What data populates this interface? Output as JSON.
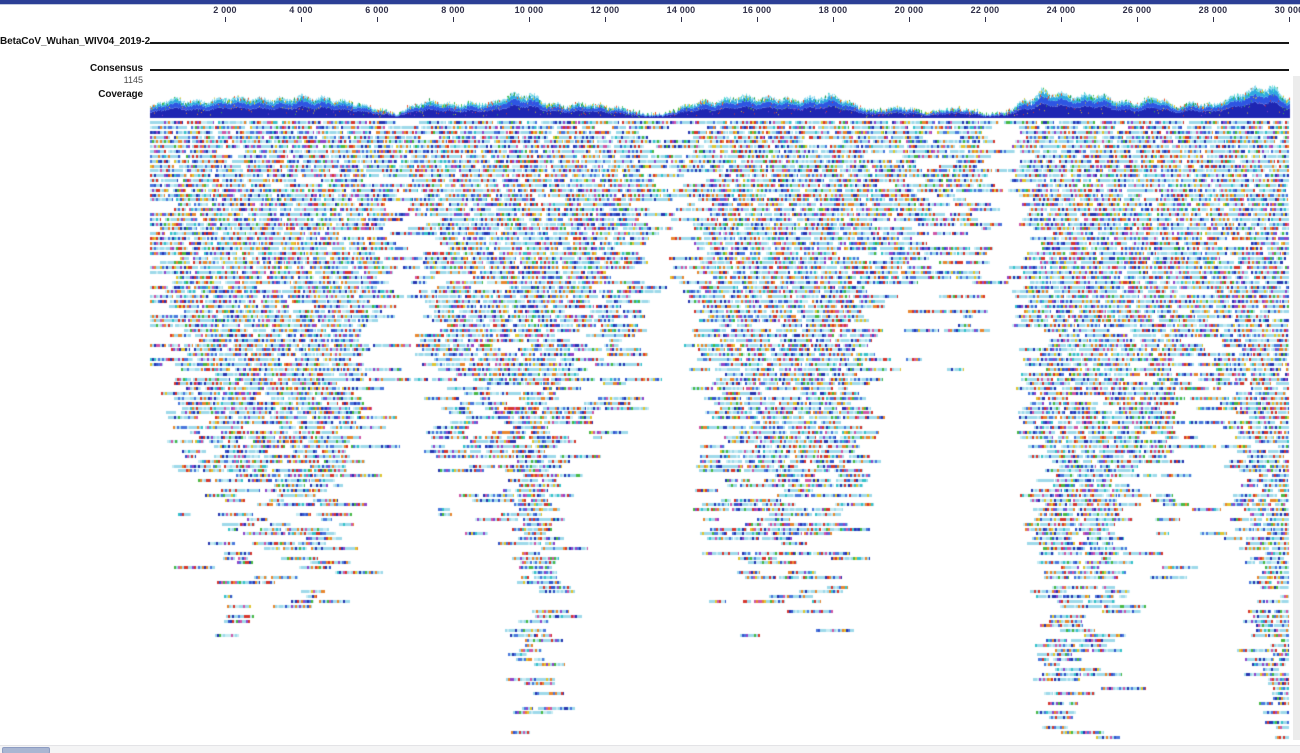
{
  "app": {
    "top_bar_color": "#2c3f96"
  },
  "ruler": {
    "ticks": [
      {
        "bp": 2000,
        "label": "2 000"
      },
      {
        "bp": 4000,
        "label": "4 000"
      },
      {
        "bp": 6000,
        "label": "6 000"
      },
      {
        "bp": 8000,
        "label": "8 000"
      },
      {
        "bp": 10000,
        "label": "10 000"
      },
      {
        "bp": 12000,
        "label": "12 000"
      },
      {
        "bp": 14000,
        "label": "14 000"
      },
      {
        "bp": 16000,
        "label": "16 000"
      },
      {
        "bp": 18000,
        "label": "18 000"
      },
      {
        "bp": 20000,
        "label": "20 000"
      },
      {
        "bp": 22000,
        "label": "22 000"
      },
      {
        "bp": 24000,
        "label": "24 000"
      },
      {
        "bp": 26000,
        "label": "26 000"
      },
      {
        "bp": 28000,
        "label": "28 000"
      },
      {
        "bp": 30000,
        "label": "30 000"
      }
    ]
  },
  "tracks": {
    "reference": {
      "label": "BetaCoV_Wuhan_WIV04_2019-2"
    },
    "consensus": {
      "label": "Consensus",
      "value": "1145"
    },
    "coverage": {
      "label": "Coverage"
    }
  },
  "chart_data": {
    "type": "area",
    "title": "Coverage",
    "x_start": 0,
    "x_step": 500,
    "xlim": [
      0,
      30000
    ],
    "x_tick_labels": [
      "2 000",
      "4 000",
      "6 000",
      "8 000",
      "10 000",
      "12 000",
      "14 000",
      "16 000",
      "18 000",
      "20 000",
      "22 000",
      "24 000",
      "26 000",
      "28 000",
      "30 000"
    ],
    "max_value_label": "1145",
    "values": [
      0.28,
      0.52,
      0.48,
      0.5,
      0.6,
      0.52,
      0.5,
      0.56,
      0.62,
      0.55,
      0.46,
      0.42,
      0.28,
      0.12,
      0.38,
      0.5,
      0.42,
      0.48,
      0.4,
      0.66,
      0.78,
      0.48,
      0.36,
      0.42,
      0.36,
      0.3,
      0.12,
      0.1,
      0.3,
      0.52,
      0.5,
      0.58,
      0.54,
      0.6,
      0.52,
      0.55,
      0.6,
      0.42,
      0.22,
      0.3,
      0.26,
      0.16,
      0.3,
      0.28,
      0.12,
      0.15,
      0.55,
      0.88,
      0.7,
      0.62,
      0.74,
      0.55,
      0.42,
      0.6,
      0.32,
      0.48,
      0.38,
      0.56,
      0.78,
      0.93,
      0.55
    ],
    "colors": {
      "dark": "#1f26b2",
      "mid": "#2e55e2",
      "light": "#2fa9e0",
      "pale": "#8fdcee",
      "crest_specks": [
        "#44c455",
        "#ddc832",
        "#e85a35",
        "#ffffff",
        "#54ddcb",
        "#2e9e48"
      ],
      "inner_specks": [
        "#d6392e",
        "#e8872f",
        "#4bb843",
        "#ddc832",
        "#8e44c8"
      ]
    }
  },
  "reads": {
    "rows": 128,
    "base_color": "#9ed9ea",
    "pale_color": "#c6ebf2",
    "blue_color": "#4a77dd",
    "navy_color": "#2736b0",
    "mismatch_palette": [
      "#d6372e",
      "#e8872f",
      "#e0c530",
      "#49b944",
      "#9145c9",
      "#cf57a8",
      "#36c3c9",
      "#d6372e",
      "#e8872f",
      "#3355cc"
    ]
  },
  "scrollbars": {
    "horizontal_thumb_color": "#a9b6d2",
    "vertical_track_color": "#ececec"
  }
}
